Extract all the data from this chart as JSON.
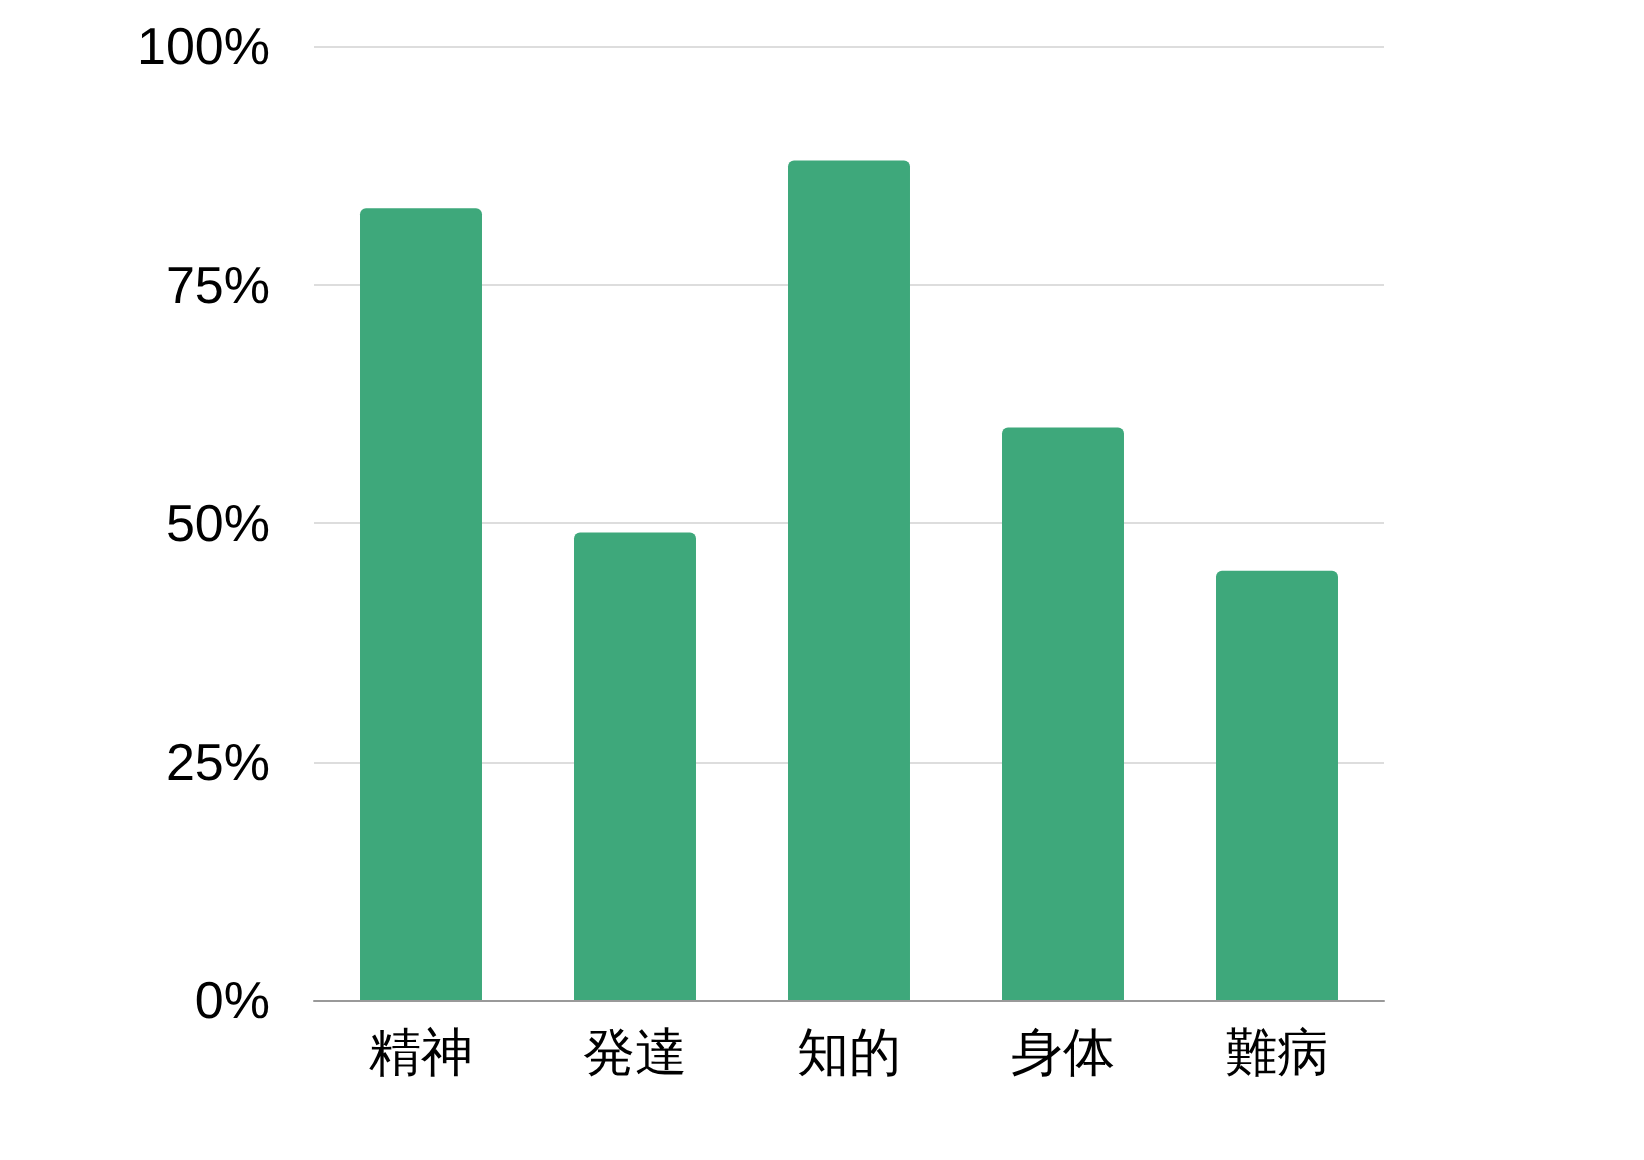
{
  "chart_data": {
    "type": "bar",
    "categories": [
      "精神",
      "発達",
      "知的",
      "身体",
      "難病"
    ],
    "values": [
      83,
      49,
      88,
      60,
      45
    ],
    "color": "#3ea87b",
    "ylim": [
      0,
      100
    ],
    "yticks": [
      {
        "value": 0,
        "label": "0%"
      },
      {
        "value": 25,
        "label": "25%"
      },
      {
        "value": 50,
        "label": "50%"
      },
      {
        "value": 75,
        "label": "75%"
      },
      {
        "value": 100,
        "label": "100%"
      }
    ],
    "grid": "y"
  }
}
